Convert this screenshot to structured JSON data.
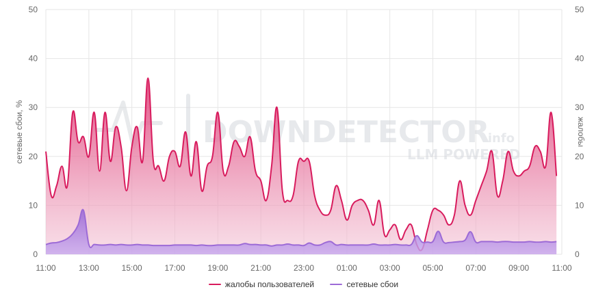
{
  "watermark": {
    "brand": "DOWNDETECTOR",
    "suffix": ".info",
    "tagline": "LLM POWERED"
  },
  "colors": {
    "complaints": "#d81b5d",
    "outages": "#9c6ad6",
    "grid": "#e6e6e6",
    "text": "#666666"
  },
  "chart_data": {
    "type": "area",
    "title": "",
    "ylabel": "сетевые сбои, %",
    "ylabel_right": "жалобы",
    "ylim": [
      0,
      50
    ],
    "yticks": [
      0,
      10,
      20,
      30,
      40,
      50
    ],
    "xlim": [
      0,
      24
    ],
    "xticks": [
      {
        "pos": 0,
        "label": "11:00"
      },
      {
        "pos": 2,
        "label": "13:00"
      },
      {
        "pos": 4,
        "label": "15:00"
      },
      {
        "pos": 6,
        "label": "17:00"
      },
      {
        "pos": 8,
        "label": "19:00"
      },
      {
        "pos": 10,
        "label": "21:00"
      },
      {
        "pos": 12,
        "label": "23:00"
      },
      {
        "pos": 14,
        "label": "01:00"
      },
      {
        "pos": 16,
        "label": "03:00"
      },
      {
        "pos": 18,
        "label": "05:00"
      },
      {
        "pos": 20,
        "label": "07:00"
      },
      {
        "pos": 22,
        "label": "09:00"
      },
      {
        "pos": 24,
        "label": "11:00"
      }
    ],
    "series": [
      {
        "name": "жалобы пользователей",
        "points": [
          [
            0,
            21
          ],
          [
            0.25,
            12
          ],
          [
            0.5,
            14
          ],
          [
            0.75,
            18
          ],
          [
            1,
            14
          ],
          [
            1.25,
            29
          ],
          [
            1.5,
            23
          ],
          [
            1.75,
            24
          ],
          [
            2,
            20
          ],
          [
            2.25,
            29
          ],
          [
            2.5,
            17
          ],
          [
            2.75,
            29
          ],
          [
            3,
            19
          ],
          [
            3.25,
            26
          ],
          [
            3.5,
            22
          ],
          [
            3.75,
            13
          ],
          [
            4,
            22
          ],
          [
            4.25,
            26
          ],
          [
            4.5,
            19
          ],
          [
            4.75,
            36
          ],
          [
            5,
            19
          ],
          [
            5.25,
            18
          ],
          [
            5.5,
            15
          ],
          [
            5.75,
            20
          ],
          [
            6,
            21
          ],
          [
            6.25,
            18
          ],
          [
            6.5,
            25
          ],
          [
            6.75,
            16
          ],
          [
            7,
            23
          ],
          [
            7.25,
            13
          ],
          [
            7.5,
            18
          ],
          [
            7.75,
            20
          ],
          [
            8,
            29
          ],
          [
            8.25,
            17
          ],
          [
            8.5,
            18
          ],
          [
            8.75,
            23
          ],
          [
            9,
            22
          ],
          [
            9.25,
            20
          ],
          [
            9.5,
            24
          ],
          [
            9.75,
            17
          ],
          [
            10,
            15
          ],
          [
            10.25,
            11
          ],
          [
            10.5,
            18
          ],
          [
            10.75,
            30
          ],
          [
            11,
            13
          ],
          [
            11.25,
            11
          ],
          [
            11.5,
            12
          ],
          [
            11.75,
            19
          ],
          [
            12,
            19
          ],
          [
            12.25,
            19
          ],
          [
            12.5,
            12
          ],
          [
            12.75,
            9
          ],
          [
            13,
            8
          ],
          [
            13.25,
            9
          ],
          [
            13.5,
            14
          ],
          [
            13.75,
            11
          ],
          [
            14,
            7
          ],
          [
            14.25,
            10
          ],
          [
            14.5,
            11
          ],
          [
            14.75,
            11
          ],
          [
            15,
            9
          ],
          [
            15.25,
            6
          ],
          [
            15.5,
            11
          ],
          [
            15.75,
            4
          ],
          [
            16,
            5
          ],
          [
            16.25,
            6
          ],
          [
            16.5,
            3
          ],
          [
            16.75,
            5
          ],
          [
            17,
            6
          ],
          [
            17.25,
            2
          ],
          [
            17.5,
            1
          ],
          [
            17.75,
            5
          ],
          [
            18,
            9
          ],
          [
            18.25,
            9
          ],
          [
            18.5,
            8
          ],
          [
            18.75,
            6
          ],
          [
            19,
            8
          ],
          [
            19.25,
            15
          ],
          [
            19.5,
            10
          ],
          [
            19.75,
            8
          ],
          [
            20,
            11
          ],
          [
            20.25,
            14
          ],
          [
            20.5,
            17
          ],
          [
            20.75,
            21
          ],
          [
            21,
            12
          ],
          [
            21.25,
            15
          ],
          [
            21.5,
            21
          ],
          [
            21.75,
            17
          ],
          [
            22,
            16
          ],
          [
            22.25,
            17
          ],
          [
            22.5,
            18
          ],
          [
            22.75,
            22
          ],
          [
            23,
            21
          ],
          [
            23.25,
            18
          ],
          [
            23.5,
            29
          ],
          [
            23.75,
            16
          ]
        ]
      },
      {
        "name": "сетевые сбои",
        "points": [
          [
            0,
            2
          ],
          [
            0.25,
            2.3
          ],
          [
            0.5,
            2.4
          ],
          [
            0.75,
            2.7
          ],
          [
            1,
            3.2
          ],
          [
            1.25,
            4.2
          ],
          [
            1.5,
            6
          ],
          [
            1.75,
            9
          ],
          [
            2,
            2
          ],
          [
            2.25,
            2
          ],
          [
            2.5,
            1.9
          ],
          [
            2.75,
            1.9
          ],
          [
            3,
            2
          ],
          [
            3.25,
            1.9
          ],
          [
            3.5,
            2
          ],
          [
            3.75,
            1.9
          ],
          [
            4,
            1.9
          ],
          [
            4.25,
            2
          ],
          [
            4.5,
            1.9
          ],
          [
            4.75,
            1.9
          ],
          [
            5,
            1.8
          ],
          [
            5.25,
            1.8
          ],
          [
            5.5,
            1.8
          ],
          [
            5.75,
            1.8
          ],
          [
            6,
            1.9
          ],
          [
            6.25,
            1.9
          ],
          [
            6.5,
            1.9
          ],
          [
            6.75,
            1.9
          ],
          [
            7,
            1.8
          ],
          [
            7.25,
            1.9
          ],
          [
            7.5,
            1.8
          ],
          [
            7.75,
            1.8
          ],
          [
            8,
            1.9
          ],
          [
            8.25,
            1.9
          ],
          [
            8.5,
            1.9
          ],
          [
            8.75,
            1.9
          ],
          [
            9,
            1.9
          ],
          [
            9.25,
            2.2
          ],
          [
            9.5,
            2
          ],
          [
            9.75,
            2
          ],
          [
            10,
            1.9
          ],
          [
            10.25,
            1.9
          ],
          [
            10.5,
            1.7
          ],
          [
            10.75,
            1.9
          ],
          [
            11,
            1.9
          ],
          [
            11.25,
            2.1
          ],
          [
            11.5,
            1.9
          ],
          [
            11.75,
            1.9
          ],
          [
            12,
            1.8
          ],
          [
            12.25,
            2.3
          ],
          [
            12.5,
            1.9
          ],
          [
            12.75,
            1.9
          ],
          [
            13,
            2.4
          ],
          [
            13.25,
            2.6
          ],
          [
            13.5,
            1.9
          ],
          [
            13.75,
            2
          ],
          [
            14,
            1.9
          ],
          [
            14.25,
            1.9
          ],
          [
            14.5,
            1.9
          ],
          [
            14.75,
            1.9
          ],
          [
            15,
            1.9
          ],
          [
            15.25,
            2.1
          ],
          [
            15.5,
            1.9
          ],
          [
            15.75,
            1.9
          ],
          [
            16,
            1.9
          ],
          [
            16.25,
            2
          ],
          [
            16.5,
            1.9
          ],
          [
            16.75,
            1.9
          ],
          [
            17,
            2
          ],
          [
            17.25,
            3.8
          ],
          [
            17.5,
            2.5
          ],
          [
            17.75,
            2.5
          ],
          [
            18,
            2.6
          ],
          [
            18.25,
            4.7
          ],
          [
            18.5,
            2.5
          ],
          [
            18.75,
            2.4
          ],
          [
            19,
            2.5
          ],
          [
            19.25,
            2.6
          ],
          [
            19.5,
            2.9
          ],
          [
            19.75,
            4.6
          ],
          [
            20,
            2.5
          ],
          [
            20.25,
            2.6
          ],
          [
            20.5,
            2.6
          ],
          [
            20.75,
            2.6
          ],
          [
            21,
            2.5
          ],
          [
            21.25,
            2.6
          ],
          [
            21.5,
            2.6
          ],
          [
            21.75,
            2.5
          ],
          [
            22,
            2.5
          ],
          [
            22.25,
            2.5
          ],
          [
            22.5,
            2.6
          ],
          [
            22.75,
            2.5
          ],
          [
            23,
            2.5
          ],
          [
            23.25,
            2.6
          ],
          [
            23.5,
            2.5
          ],
          [
            23.75,
            2.6
          ]
        ]
      }
    ],
    "legend_position": "bottom",
    "grid": true
  }
}
